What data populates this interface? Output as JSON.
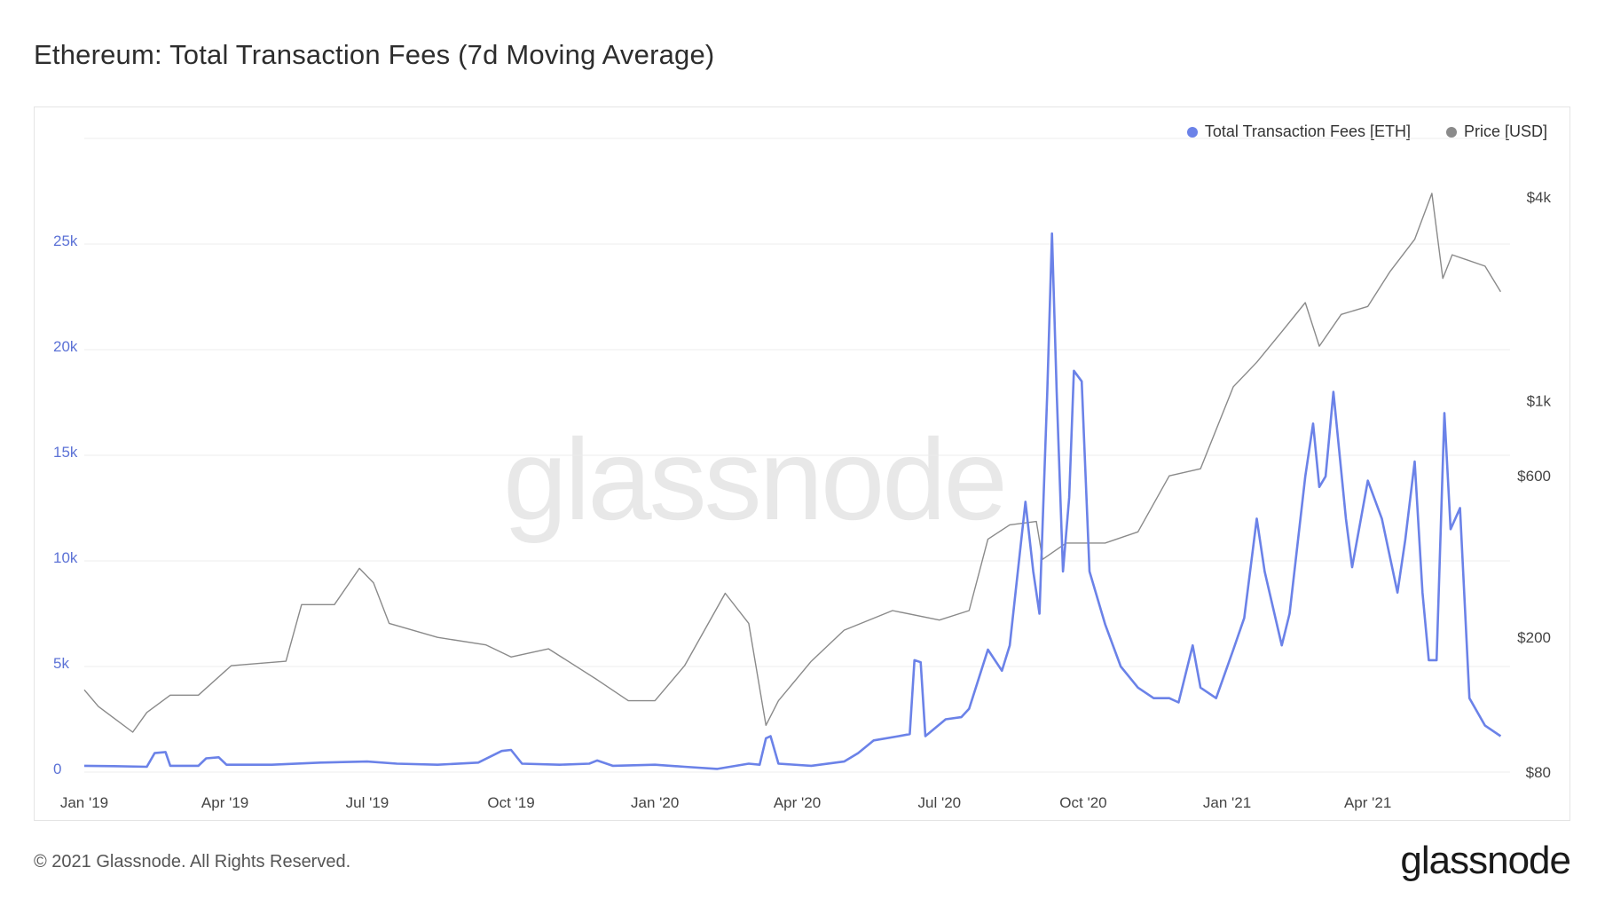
{
  "title": "Ethereum: Total Transaction Fees (7d Moving Average)",
  "footer": "© 2021 Glassnode. All Rights Reserved.",
  "logo": "glassnode",
  "watermark": "glassnode",
  "colors": {
    "fees": "#6b82e8",
    "price": "#8a8a8a",
    "grid": "#ececec",
    "left_axis": "#5c72d6"
  },
  "legend": [
    {
      "label": "Total Transaction Fees [ETH]",
      "color": "#6b82e8"
    },
    {
      "label": "Price [USD]",
      "color": "#8a8a8a"
    }
  ],
  "chart_data": {
    "type": "line",
    "title": "Ethereum: Total Transaction Fees (7d Moving Average)",
    "x_ticks": [
      "Jan '19",
      "Apr '19",
      "Jul '19",
      "Oct '19",
      "Jan '20",
      "Apr '20",
      "Jul '20",
      "Oct '20",
      "Jan '21",
      "Apr '21"
    ],
    "y_left": {
      "ticks": [
        0,
        5000,
        10000,
        15000,
        20000,
        25000
      ],
      "tick_labels": [
        "0",
        "5k",
        "10k",
        "15k",
        "20k",
        "25k"
      ],
      "range": [
        0,
        30000
      ]
    },
    "y_right": {
      "scale": "log",
      "ticks": [
        80,
        200,
        600,
        1000,
        4000
      ],
      "tick_labels": [
        "$80",
        "$200",
        "$600",
        "$1k",
        "$4k"
      ]
    },
    "grid": true,
    "legend_position": "top-right",
    "series": [
      {
        "name": "Total Transaction Fees [ETH]",
        "axis": "left",
        "points": [
          [
            "2019-01-01",
            300
          ],
          [
            "2019-01-20",
            280
          ],
          [
            "2019-02-10",
            250
          ],
          [
            "2019-02-15",
            900
          ],
          [
            "2019-02-22",
            950
          ],
          [
            "2019-02-25",
            300
          ],
          [
            "2019-03-15",
            300
          ],
          [
            "2019-03-20",
            650
          ],
          [
            "2019-03-28",
            700
          ],
          [
            "2019-04-02",
            350
          ],
          [
            "2019-05-01",
            350
          ],
          [
            "2019-06-01",
            450
          ],
          [
            "2019-07-01",
            500
          ],
          [
            "2019-07-20",
            400
          ],
          [
            "2019-08-15",
            350
          ],
          [
            "2019-09-10",
            450
          ],
          [
            "2019-09-25",
            1000
          ],
          [
            "2019-10-01",
            1050
          ],
          [
            "2019-10-08",
            400
          ],
          [
            "2019-11-01",
            350
          ],
          [
            "2019-11-20",
            400
          ],
          [
            "2019-11-25",
            550
          ],
          [
            "2019-12-05",
            300
          ],
          [
            "2020-01-01",
            350
          ],
          [
            "2020-01-20",
            250
          ],
          [
            "2020-02-10",
            150
          ],
          [
            "2020-03-01",
            400
          ],
          [
            "2020-03-08",
            350
          ],
          [
            "2020-03-12",
            1600
          ],
          [
            "2020-03-15",
            1700
          ],
          [
            "2020-03-20",
            400
          ],
          [
            "2020-04-10",
            300
          ],
          [
            "2020-05-01",
            500
          ],
          [
            "2020-05-10",
            900
          ],
          [
            "2020-05-20",
            1500
          ],
          [
            "2020-06-05",
            1700
          ],
          [
            "2020-06-12",
            1800
          ],
          [
            "2020-06-15",
            5300
          ],
          [
            "2020-06-19",
            5200
          ],
          [
            "2020-06-22",
            1700
          ],
          [
            "2020-07-05",
            2500
          ],
          [
            "2020-07-15",
            2600
          ],
          [
            "2020-07-20",
            3000
          ],
          [
            "2020-08-01",
            5800
          ],
          [
            "2020-08-10",
            4800
          ],
          [
            "2020-08-15",
            6000
          ],
          [
            "2020-08-25",
            12800
          ],
          [
            "2020-08-30",
            9500
          ],
          [
            "2020-09-03",
            7500
          ],
          [
            "2020-09-08",
            18000
          ],
          [
            "2020-09-11",
            25500
          ],
          [
            "2020-09-14",
            18000
          ],
          [
            "2020-09-18",
            9500
          ],
          [
            "2020-09-22",
            13000
          ],
          [
            "2020-09-25",
            19000
          ],
          [
            "2020-09-30",
            18500
          ],
          [
            "2020-10-05",
            9500
          ],
          [
            "2020-10-15",
            7000
          ],
          [
            "2020-10-25",
            5000
          ],
          [
            "2020-11-05",
            4000
          ],
          [
            "2020-11-15",
            3500
          ],
          [
            "2020-11-25",
            3500
          ],
          [
            "2020-12-01",
            3300
          ],
          [
            "2020-12-10",
            6000
          ],
          [
            "2020-12-15",
            4000
          ],
          [
            "2020-12-25",
            3500
          ],
          [
            "2021-01-05",
            5800
          ],
          [
            "2021-01-12",
            7300
          ],
          [
            "2021-01-20",
            12000
          ],
          [
            "2021-01-25",
            9500
          ],
          [
            "2021-02-05",
            6000
          ],
          [
            "2021-02-10",
            7500
          ],
          [
            "2021-02-20",
            14000
          ],
          [
            "2021-02-25",
            16500
          ],
          [
            "2021-03-01",
            13500
          ],
          [
            "2021-03-05",
            14000
          ],
          [
            "2021-03-10",
            18000
          ],
          [
            "2021-03-18",
            12000
          ],
          [
            "2021-03-22",
            9700
          ],
          [
            "2021-04-01",
            13800
          ],
          [
            "2021-04-10",
            12000
          ],
          [
            "2021-04-20",
            8500
          ],
          [
            "2021-04-25",
            11000
          ],
          [
            "2021-05-01",
            14700
          ],
          [
            "2021-05-06",
            8500
          ],
          [
            "2021-05-10",
            5300
          ],
          [
            "2021-05-15",
            5300
          ],
          [
            "2021-05-20",
            17000
          ],
          [
            "2021-05-24",
            11500
          ],
          [
            "2021-05-30",
            12500
          ],
          [
            "2021-06-05",
            3500
          ],
          [
            "2021-06-15",
            2200
          ],
          [
            "2021-06-25",
            1700
          ]
        ]
      },
      {
        "name": "Price [USD]",
        "axis": "right",
        "points": [
          [
            "2019-01-01",
            140
          ],
          [
            "2019-01-10",
            125
          ],
          [
            "2019-02-01",
            105
          ],
          [
            "2019-02-10",
            120
          ],
          [
            "2019-02-25",
            135
          ],
          [
            "2019-03-15",
            135
          ],
          [
            "2019-04-05",
            165
          ],
          [
            "2019-05-10",
            170
          ],
          [
            "2019-05-20",
            250
          ],
          [
            "2019-06-10",
            250
          ],
          [
            "2019-06-26",
            320
          ],
          [
            "2019-07-05",
            290
          ],
          [
            "2019-07-15",
            220
          ],
          [
            "2019-08-15",
            200
          ],
          [
            "2019-09-15",
            190
          ],
          [
            "2019-10-01",
            175
          ],
          [
            "2019-10-25",
            185
          ],
          [
            "2019-11-25",
            150
          ],
          [
            "2019-12-15",
            130
          ],
          [
            "2020-01-01",
            130
          ],
          [
            "2020-01-20",
            165
          ],
          [
            "2020-02-15",
            270
          ],
          [
            "2020-03-01",
            220
          ],
          [
            "2020-03-12",
            110
          ],
          [
            "2020-03-20",
            130
          ],
          [
            "2020-04-10",
            170
          ],
          [
            "2020-05-01",
            210
          ],
          [
            "2020-06-01",
            240
          ],
          [
            "2020-07-01",
            225
          ],
          [
            "2020-07-20",
            240
          ],
          [
            "2020-08-01",
            390
          ],
          [
            "2020-08-15",
            430
          ],
          [
            "2020-09-01",
            440
          ],
          [
            "2020-09-05",
            340
          ],
          [
            "2020-09-20",
            380
          ],
          [
            "2020-10-15",
            380
          ],
          [
            "2020-11-05",
            410
          ],
          [
            "2020-11-25",
            600
          ],
          [
            "2020-12-15",
            630
          ],
          [
            "2021-01-05",
            1100
          ],
          [
            "2021-01-20",
            1300
          ],
          [
            "2021-02-05",
            1600
          ],
          [
            "2021-02-20",
            1950
          ],
          [
            "2021-03-01",
            1450
          ],
          [
            "2021-03-15",
            1800
          ],
          [
            "2021-04-01",
            1900
          ],
          [
            "2021-04-15",
            2400
          ],
          [
            "2021-05-01",
            3000
          ],
          [
            "2021-05-12",
            4100
          ],
          [
            "2021-05-19",
            2300
          ],
          [
            "2021-05-25",
            2700
          ],
          [
            "2021-06-15",
            2500
          ],
          [
            "2021-06-25",
            2100
          ]
        ]
      }
    ]
  }
}
